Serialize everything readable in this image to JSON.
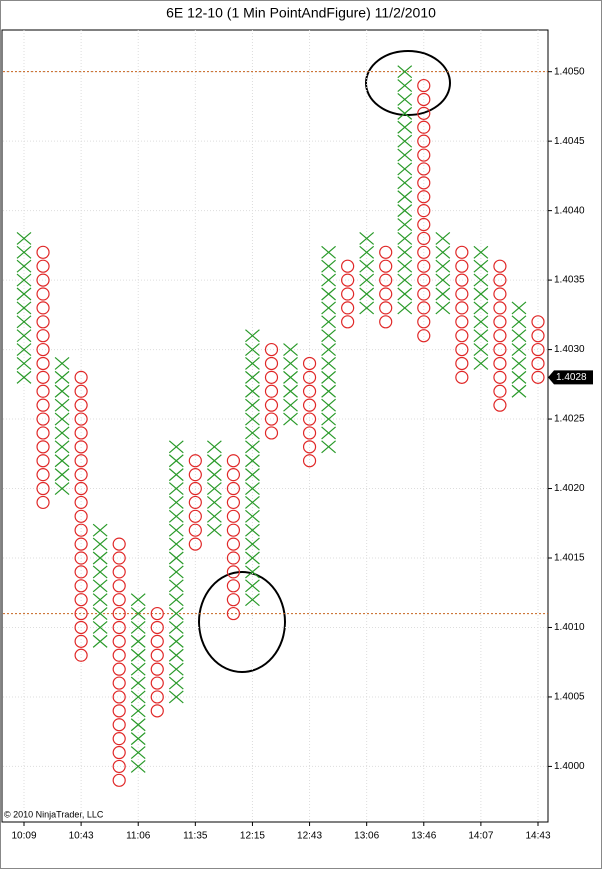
{
  "chart_data": {
    "type": "pointfigure",
    "title": "6E 12-10 (1 Min PointAndFigure)  11/2/2010",
    "copyright": "© 2010 NinjaTrader, LLC",
    "categories": [
      "10:09",
      null,
      null,
      "10:43",
      null,
      null,
      "11:06",
      null,
      null,
      "11:35",
      null,
      null,
      "12:15",
      null,
      null,
      "12:43",
      null,
      null,
      "13:06",
      null,
      null,
      "13:46",
      null,
      null,
      "14:07",
      null,
      null,
      "14:43"
    ],
    "columns": [
      {
        "kind": "X",
        "low": 1.4028,
        "high": 1.4038
      },
      {
        "kind": "O",
        "low": 1.4019,
        "high": 1.4037
      },
      {
        "kind": "X",
        "low": 1.402,
        "high": 1.4029
      },
      {
        "kind": "O",
        "low": 1.4008,
        "high": 1.4028
      },
      {
        "kind": "X",
        "low": 1.4009,
        "high": 1.4017
      },
      {
        "kind": "O",
        "low": 1.3999,
        "high": 1.4016
      },
      {
        "kind": "X",
        "low": 1.4,
        "high": 1.4012
      },
      {
        "kind": "O",
        "low": 1.4004,
        "high": 1.4011
      },
      {
        "kind": "X",
        "low": 1.4005,
        "high": 1.4023
      },
      {
        "kind": "O",
        "low": 1.4016,
        "high": 1.4022
      },
      {
        "kind": "X",
        "low": 1.4017,
        "high": 1.4023
      },
      {
        "kind": "O",
        "low": 1.4011,
        "high": 1.4022
      },
      {
        "kind": "X",
        "low": 1.4012,
        "high": 1.4031
      },
      {
        "kind": "O",
        "low": 1.4024,
        "high": 1.403
      },
      {
        "kind": "X",
        "low": 1.4025,
        "high": 1.403
      },
      {
        "kind": "O",
        "low": 1.4022,
        "high": 1.4029
      },
      {
        "kind": "X",
        "low": 1.4023,
        "high": 1.4037
      },
      {
        "kind": "O",
        "low": 1.4032,
        "high": 1.4036
      },
      {
        "kind": "X",
        "low": 1.4033,
        "high": 1.4038
      },
      {
        "kind": "O",
        "low": 1.4032,
        "high": 1.4037
      },
      {
        "kind": "X",
        "low": 1.4033,
        "high": 1.405
      },
      {
        "kind": "O",
        "low": 1.4031,
        "high": 1.4049
      },
      {
        "kind": "X",
        "low": 1.4033,
        "high": 1.4038
      },
      {
        "kind": "O",
        "low": 1.4028,
        "high": 1.4037
      },
      {
        "kind": "X",
        "low": 1.4029,
        "high": 1.4037
      },
      {
        "kind": "O",
        "low": 1.4026,
        "high": 1.4036
      },
      {
        "kind": "X",
        "low": 1.4027,
        "high": 1.4033
      },
      {
        "kind": "O",
        "low": 1.4028,
        "high": 1.4032
      }
    ],
    "colors": {
      "X": "#2a9a2a",
      "O": "#e02828"
    },
    "reference_lines": [
      1.405,
      1.4011
    ],
    "last_price": {
      "value": 1.4028,
      "label": "1.4028"
    },
    "ylim": [
      1.3996,
      1.4053
    ],
    "yticks": [
      {
        "value": 1.4,
        "label": "1.4000"
      },
      {
        "value": 1.4005,
        "label": "1.4005"
      },
      {
        "value": 1.401,
        "label": "1.4010"
      },
      {
        "value": 1.4015,
        "label": "1.4015"
      },
      {
        "value": 1.402,
        "label": "1.4020"
      },
      {
        "value": 1.4025,
        "label": "1.4025"
      },
      {
        "value": 1.403,
        "label": "1.4030"
      },
      {
        "value": 1.4035,
        "label": "1.4035"
      },
      {
        "value": 1.404,
        "label": "1.4040"
      },
      {
        "value": 1.4045,
        "label": "1.4045"
      },
      {
        "value": 1.405,
        "label": "1.4050"
      }
    ],
    "grid": true
  }
}
